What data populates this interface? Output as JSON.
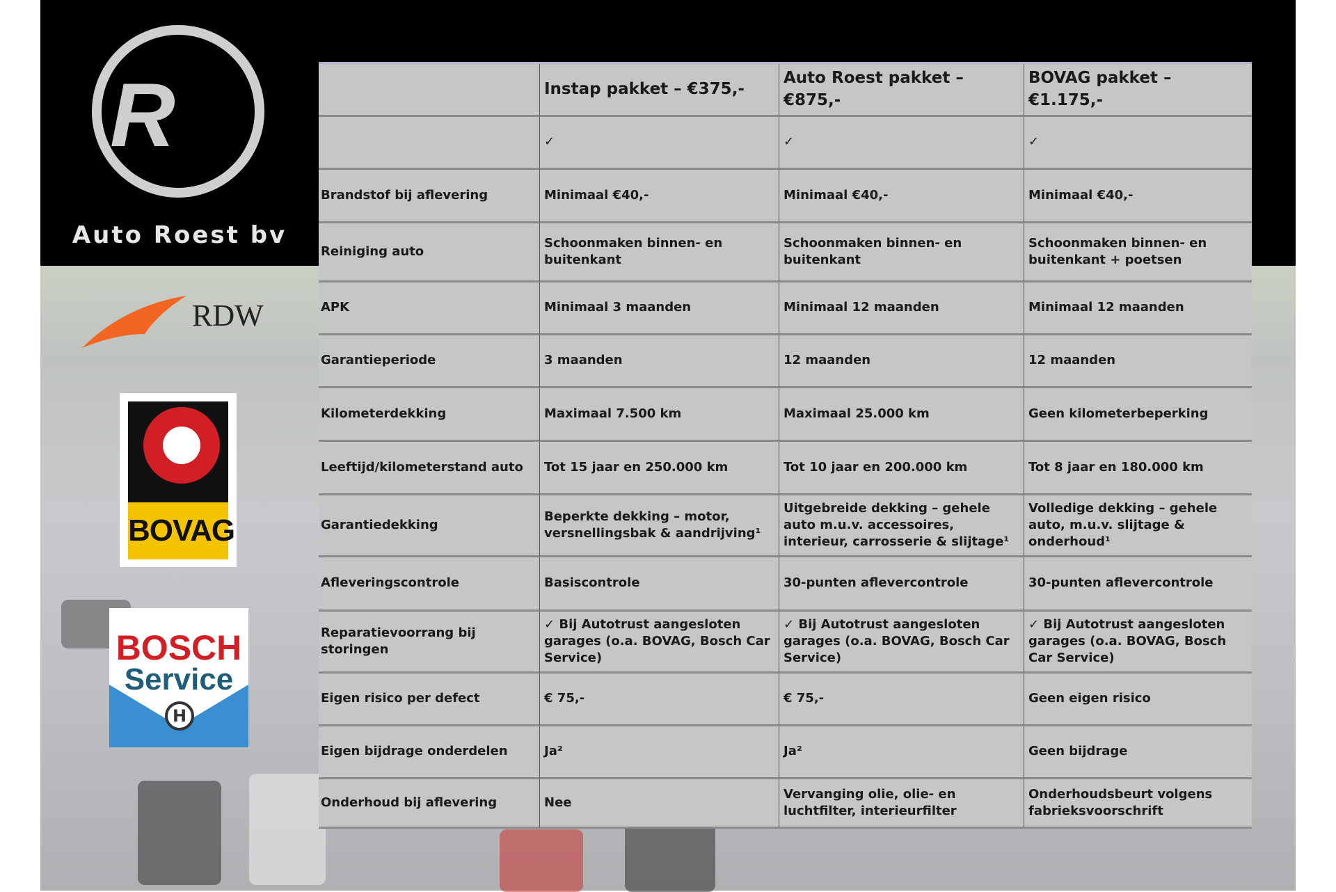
{
  "brand": {
    "name": "Auto Roest bv",
    "logo_text": "R"
  },
  "logos": {
    "rdw": "RDW",
    "bovag": "BOVAG",
    "bosch_line1": "BOSCH",
    "bosch_line2": "Service"
  },
  "table": {
    "headers": [
      "",
      "Instap pakket – €375,-",
      "Auto Roest pakket – €875,-",
      "BOVAG pakket – €1.175,-"
    ],
    "rows": [
      [
        "",
        "✓",
        "✓",
        "✓"
      ],
      [
        "Brandstof bij aflevering",
        "Minimaal €40,-",
        "Minimaal €40,-",
        "Minimaal €40,-"
      ],
      [
        "Reiniging auto",
        "Schoonmaken binnen- en buitenkant",
        "Schoonmaken binnen- en buitenkant",
        "Schoonmaken binnen- en buitenkant + poetsen"
      ],
      [
        "APK",
        "Minimaal 3 maanden",
        "Minimaal 12 maanden",
        "Minimaal 12 maanden"
      ],
      [
        "Garantieperiode",
        "3 maanden",
        "12 maanden",
        "12 maanden"
      ],
      [
        "Kilometerdekking",
        "Maximaal 7.500 km",
        "Maximaal 25.000 km",
        "Geen kilometerbeperking"
      ],
      [
        "Leeftijd/kilometerstand auto",
        "Tot 15 jaar en 250.000 km",
        "Tot 10 jaar en 200.000 km",
        "Tot 8 jaar en 180.000 km"
      ],
      [
        "Garantiedekking",
        "Beperkte dekking – motor, versnellingsbak & aandrijving¹",
        "Uitgebreide dekking – gehele auto m.u.v. accessoires, interieur, carrosserie & slijtage¹",
        "Volledige dekking – gehele auto, m.u.v. slijtage & onderhoud¹"
      ],
      [
        "Afleveringscontrole",
        "Basiscontrole",
        "30-punten aflevercontrole",
        "30-punten aflevercontrole"
      ],
      [
        "Reparatievoorrang bij storingen",
        "✓ Bij Autotrust aangesloten garages (o.a. BOVAG, Bosch Car Service)",
        "✓ Bij Autotrust aangesloten garages (o.a. BOVAG, Bosch Car Service)",
        "✓ Bij Autotrust aangesloten garages (o.a. BOVAG, Bosch Car Service)"
      ],
      [
        "Eigen risico per defect",
        "€ 75,-",
        "€ 75,-",
        "Geen eigen risico"
      ],
      [
        "Eigen bijdrage onderdelen",
        "Ja²",
        "Ja²",
        "Geen bijdrage"
      ],
      [
        "Onderhoud bij aflevering",
        "Nee",
        "Vervanging olie, olie- en luchtfilter, interieurfilter",
        "Onderhoudsbeurt volgens fabrieksvoorschrift"
      ]
    ]
  }
}
